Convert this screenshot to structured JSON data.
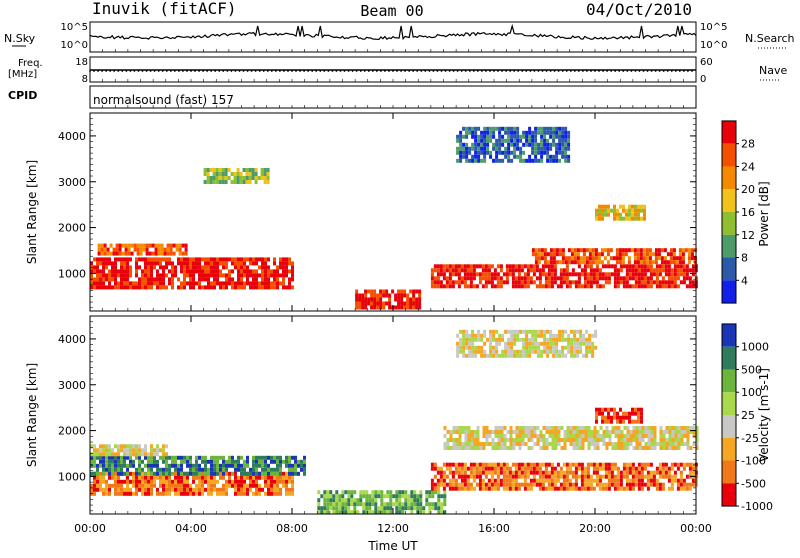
{
  "header": {
    "station": "Inuvik (fitACF)",
    "beam": "Beam 00",
    "date": "04/Oct/2010"
  },
  "panels": {
    "nsky": {
      "label": "N.Sky",
      "right_label": "N.Search",
      "ticks_left": [
        "10^5",
        "10^0"
      ],
      "ticks_right": [
        "10^5",
        "10^0"
      ]
    },
    "freq": {
      "label_line1": "Freq.",
      "label_line2": "[MHz]",
      "right_label": "Nave",
      "ticks_left": [
        "18",
        "8"
      ],
      "ticks_right": [
        "60",
        "0"
      ]
    },
    "cpid": {
      "label": "CPID",
      "text": "normalsound (fast) 157"
    }
  },
  "chart_data": [
    {
      "type": "heatmap",
      "panel": "power",
      "ylabel": "Slant Range [km]",
      "xlabel": "",
      "ylim": [
        180,
        4500
      ],
      "xlim": [
        0,
        24
      ],
      "yticks": [
        1000,
        2000,
        3000,
        4000
      ],
      "ytick_labels": [
        "1000",
        "2000",
        "3000",
        "4000"
      ],
      "colorbar": {
        "label": "Power [dB]",
        "tick_labels": [
          "28",
          "24",
          "20",
          "16",
          "12",
          "8",
          "4"
        ],
        "colors": [
          "#e8000b",
          "#f54f00",
          "#f58a00",
          "#f0c21a",
          "#8fbf2f",
          "#4c9b68",
          "#2b5aa8",
          "#1020e8"
        ]
      },
      "bands": [
        {
          "x0": 0.0,
          "x1": 8.0,
          "y0": 700,
          "y1": 1350,
          "level": 0
        },
        {
          "x0": 0.3,
          "x1": 3.8,
          "y0": 1400,
          "y1": 1650,
          "level": 1
        },
        {
          "x0": 4.5,
          "x1": 7.0,
          "y0": 3000,
          "y1": 3300,
          "level": 4
        },
        {
          "x0": 10.5,
          "x1": 13.0,
          "y0": 250,
          "y1": 650,
          "level": 0
        },
        {
          "x0": 13.5,
          "x1": 24.0,
          "y0": 700,
          "y1": 1200,
          "level": 0
        },
        {
          "x0": 17.5,
          "x1": 24.0,
          "y0": 1250,
          "y1": 1550,
          "level": 1
        },
        {
          "x0": 14.5,
          "x1": 19.0,
          "y0": 3500,
          "y1": 4200,
          "level": 6
        },
        {
          "x0": 20.0,
          "x1": 22.0,
          "y0": 2200,
          "y1": 2500,
          "level": 3
        }
      ]
    },
    {
      "type": "heatmap",
      "panel": "velocity",
      "ylabel": "Slant Range [km]",
      "xlabel": "Time UT",
      "ylim": [
        180,
        4500
      ],
      "xlim": [
        0,
        24
      ],
      "yticks": [
        1000,
        2000,
        3000,
        4000
      ],
      "ytick_labels": [
        "1000",
        "2000",
        "3000",
        "4000"
      ],
      "xtick_labels": [
        "00:00",
        "04:00",
        "08:00",
        "12:00",
        "16:00",
        "20:00",
        "00:00"
      ],
      "colorbar": {
        "label": "Velocity [m s-1]",
        "tick_labels": [
          "1000",
          "500",
          "100",
          "25",
          "-25",
          "-100",
          "-500",
          "-1000"
        ],
        "colors": [
          "#1a35b5",
          "#2f7c5c",
          "#6cb53d",
          "#a9d84a",
          "#c8c8c4",
          "#f5a623",
          "#f07818",
          "#e8000b"
        ]
      },
      "bands": [
        {
          "x0": 0.0,
          "x1": 8.0,
          "y0": 600,
          "y1": 1100,
          "level": 6
        },
        {
          "x0": 0.0,
          "x1": 8.5,
          "y0": 1100,
          "y1": 1450,
          "level": 1
        },
        {
          "x0": 0.0,
          "x1": 3.0,
          "y0": 1450,
          "y1": 1700,
          "level": 4
        },
        {
          "x0": 9.0,
          "x1": 14.0,
          "y0": 250,
          "y1": 700,
          "level": 2
        },
        {
          "x0": 13.5,
          "x1": 24.0,
          "y0": 700,
          "y1": 1300,
          "level": 6
        },
        {
          "x0": 14.0,
          "x1": 24.0,
          "y0": 1650,
          "y1": 2100,
          "level": 4
        },
        {
          "x0": 14.5,
          "x1": 20.0,
          "y0": 3600,
          "y1": 4200,
          "level": 4
        },
        {
          "x0": 20.0,
          "x1": 21.8,
          "y0": 2200,
          "y1": 2500,
          "level": 7
        }
      ]
    }
  ]
}
